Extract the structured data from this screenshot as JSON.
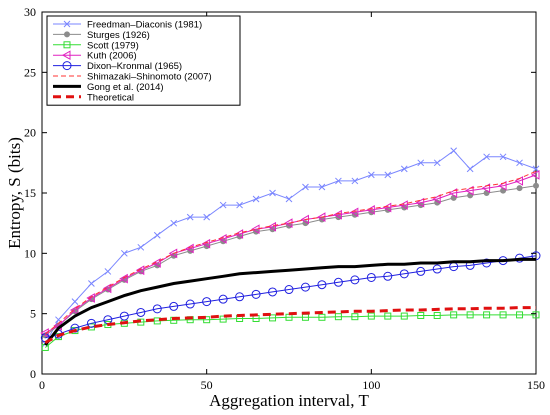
{
  "chart_data": {
    "type": "line",
    "xlabel": "Aggregation interval, T",
    "ylabel": "Entropy, S (bits)",
    "xlim": [
      0,
      150
    ],
    "ylim": [
      0,
      30
    ],
    "xticks": [
      "0",
      "50",
      "100",
      "150"
    ],
    "yticks": [
      "0",
      "5",
      "10",
      "15",
      "20",
      "25",
      "30"
    ],
    "grid": false,
    "legend_position": "top-left",
    "series": [
      {
        "name": "Freedman–Diaconis (1981)",
        "color": "#7a86ff",
        "marker": "x",
        "linestyle": "solid",
        "x": [
          1,
          5,
          10,
          15,
          20,
          25,
          30,
          35,
          40,
          45,
          50,
          55,
          60,
          65,
          70,
          75,
          80,
          85,
          90,
          95,
          100,
          105,
          110,
          115,
          120,
          125,
          130,
          135,
          140,
          145,
          150
        ],
        "y": [
          2.5,
          4.5,
          6.0,
          7.5,
          8.5,
          10.0,
          10.5,
          11.5,
          12.5,
          13.0,
          13.0,
          14.0,
          14.0,
          14.5,
          15.0,
          14.5,
          15.5,
          15.5,
          16.0,
          16.0,
          16.5,
          16.5,
          17.0,
          17.5,
          17.5,
          18.5,
          17.0,
          18.0,
          18.0,
          17.5,
          17.0
        ]
      },
      {
        "name": "Sturges (1926)",
        "color": "#8c8c8c",
        "marker": "filled-circle",
        "linestyle": "solid",
        "x": [
          1,
          5,
          10,
          15,
          20,
          25,
          30,
          35,
          40,
          45,
          50,
          55,
          60,
          65,
          70,
          75,
          80,
          85,
          90,
          95,
          100,
          105,
          110,
          115,
          120,
          125,
          130,
          135,
          140,
          145,
          150
        ],
        "y": [
          3.2,
          4.0,
          5.2,
          6.2,
          7.0,
          7.8,
          8.5,
          9.0,
          9.8,
          10.2,
          10.6,
          11.0,
          11.4,
          11.8,
          12.0,
          12.3,
          12.5,
          12.8,
          13.0,
          13.2,
          13.4,
          13.6,
          13.8,
          14.0,
          14.2,
          14.6,
          14.8,
          15.0,
          15.2,
          15.4,
          15.6
        ]
      },
      {
        "name": "Scott (1979)",
        "color": "#33dd33",
        "marker": "square",
        "linestyle": "solid",
        "x": [
          1,
          5,
          10,
          15,
          20,
          25,
          30,
          35,
          40,
          45,
          50,
          55,
          60,
          65,
          70,
          75,
          80,
          85,
          90,
          95,
          100,
          105,
          110,
          115,
          120,
          125,
          130,
          135,
          140,
          145,
          150
        ],
        "y": [
          2.2,
          3.1,
          3.6,
          3.9,
          4.1,
          4.2,
          4.3,
          4.4,
          4.45,
          4.5,
          4.5,
          4.55,
          4.6,
          4.6,
          4.65,
          4.7,
          4.7,
          4.7,
          4.75,
          4.75,
          4.8,
          4.8,
          4.8,
          4.85,
          4.85,
          4.9,
          4.9,
          4.9,
          4.9,
          4.9,
          4.9
        ]
      },
      {
        "name": "Kuth (2006)",
        "color": "#e020c0",
        "marker": "triangle-left",
        "linestyle": "solid",
        "x": [
          1,
          5,
          10,
          15,
          20,
          25,
          30,
          35,
          40,
          45,
          50,
          55,
          60,
          65,
          70,
          75,
          80,
          85,
          90,
          95,
          100,
          105,
          110,
          115,
          120,
          125,
          130,
          135,
          140,
          145,
          150
        ],
        "y": [
          3.4,
          4.0,
          5.3,
          6.3,
          7.1,
          7.9,
          8.6,
          9.2,
          10.0,
          10.4,
          10.8,
          11.2,
          11.6,
          12.0,
          12.2,
          12.5,
          12.8,
          13.0,
          13.2,
          13.4,
          13.6,
          13.8,
          14.0,
          14.2,
          14.5,
          15.0,
          15.2,
          15.4,
          15.6,
          16.0,
          16.5
        ]
      },
      {
        "name": "Dixon–Kronmal (1965)",
        "color": "#2020e0",
        "marker": "circle",
        "linestyle": "solid",
        "x": [
          1,
          5,
          10,
          15,
          20,
          25,
          30,
          35,
          40,
          45,
          50,
          55,
          60,
          65,
          70,
          75,
          80,
          85,
          90,
          95,
          100,
          105,
          110,
          115,
          120,
          125,
          130,
          135,
          140,
          145,
          150
        ],
        "y": [
          3.0,
          3.3,
          3.8,
          4.2,
          4.5,
          4.8,
          5.1,
          5.4,
          5.6,
          5.8,
          6.0,
          6.2,
          6.4,
          6.6,
          6.8,
          7.0,
          7.2,
          7.4,
          7.6,
          7.8,
          8.0,
          8.1,
          8.3,
          8.5,
          8.7,
          8.9,
          9.0,
          9.2,
          9.4,
          9.6,
          9.8
        ]
      },
      {
        "name": "Shimazaki–Shinomoto (2007)",
        "color": "#ff3333",
        "marker": "none",
        "linestyle": "dashed",
        "x": [
          1,
          5,
          10,
          15,
          20,
          25,
          30,
          35,
          40,
          45,
          50,
          55,
          60,
          65,
          70,
          75,
          80,
          85,
          90,
          95,
          100,
          105,
          110,
          115,
          120,
          125,
          130,
          135,
          140,
          145,
          150
        ],
        "y": [
          3.3,
          4.2,
          5.4,
          6.4,
          7.2,
          8.0,
          8.7,
          9.3,
          10.0,
          10.5,
          10.9,
          11.3,
          11.7,
          12.0,
          12.3,
          12.5,
          12.8,
          13.0,
          13.3,
          13.5,
          13.7,
          13.9,
          14.1,
          14.4,
          14.7,
          15.2,
          15.4,
          15.6,
          15.8,
          16.2,
          16.8
        ]
      },
      {
        "name": "Gong et al. (2014)",
        "color": "#000000",
        "marker": "none",
        "linestyle": "solid-thick",
        "x": [
          1,
          5,
          10,
          15,
          20,
          25,
          30,
          35,
          40,
          45,
          50,
          55,
          60,
          65,
          70,
          75,
          80,
          85,
          90,
          95,
          100,
          105,
          110,
          115,
          120,
          125,
          130,
          135,
          140,
          145,
          150
        ],
        "y": [
          2.4,
          3.8,
          4.8,
          5.5,
          6.0,
          6.5,
          6.9,
          7.2,
          7.5,
          7.7,
          7.9,
          8.1,
          8.3,
          8.4,
          8.5,
          8.6,
          8.7,
          8.8,
          8.9,
          8.9,
          9.0,
          9.1,
          9.1,
          9.2,
          9.2,
          9.3,
          9.3,
          9.4,
          9.4,
          9.5,
          9.5
        ]
      },
      {
        "name": "Theoretical",
        "color": "#e01010",
        "marker": "none",
        "linestyle": "dashed-thick",
        "x": [
          1,
          5,
          10,
          15,
          20,
          25,
          30,
          35,
          40,
          45,
          50,
          55,
          60,
          65,
          70,
          75,
          80,
          85,
          90,
          95,
          100,
          105,
          110,
          115,
          120,
          125,
          130,
          135,
          140,
          145,
          150
        ],
        "y": [
          2.6,
          3.2,
          3.6,
          3.9,
          4.1,
          4.25,
          4.4,
          4.5,
          4.6,
          4.65,
          4.7,
          4.8,
          4.85,
          4.9,
          4.95,
          5.0,
          5.05,
          5.1,
          5.15,
          5.2,
          5.2,
          5.25,
          5.3,
          5.3,
          5.35,
          5.4,
          5.4,
          5.45,
          5.45,
          5.5,
          5.5
        ]
      }
    ]
  }
}
